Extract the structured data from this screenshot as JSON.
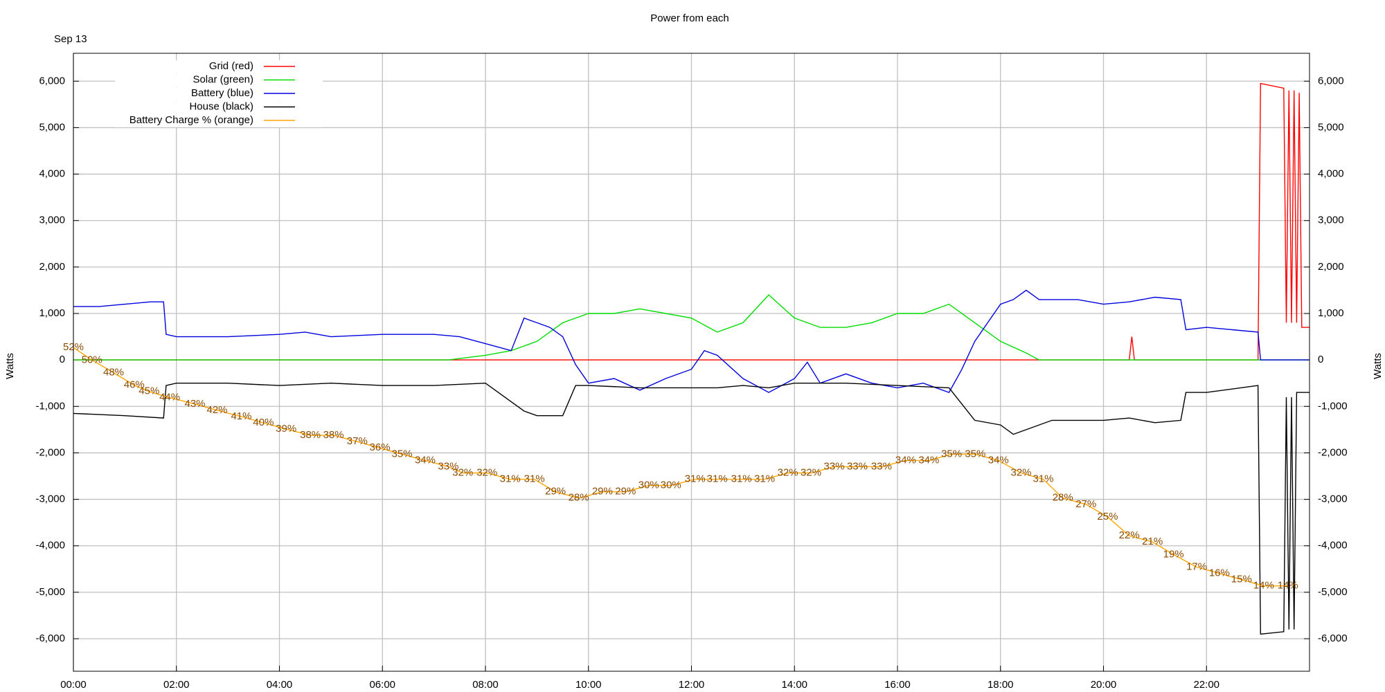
{
  "chart_data": {
    "type": "line",
    "title": "Power from each",
    "annotation": "Sep 13",
    "ylabel": "Watts",
    "y2label": "Watts",
    "xlim": [
      0,
      24
    ],
    "xticks": [
      {
        "value": 0,
        "label": "00:00"
      },
      {
        "value": 2,
        "label": "02:00"
      },
      {
        "value": 4,
        "label": "04:00"
      },
      {
        "value": 6,
        "label": "06:00"
      },
      {
        "value": 8,
        "label": "08:00"
      },
      {
        "value": 10,
        "label": "10:00"
      },
      {
        "value": 12,
        "label": "12:00"
      },
      {
        "value": 14,
        "label": "14:00"
      },
      {
        "value": 16,
        "label": "16:00"
      },
      {
        "value": 18,
        "label": "18:00"
      },
      {
        "value": 20,
        "label": "20:00"
      },
      {
        "value": 22,
        "label": "22:00"
      }
    ],
    "ylim": [
      -6700,
      6600
    ],
    "yticks": [
      {
        "value": 6000,
        "label": "6,000"
      },
      {
        "value": 5000,
        "label": "5,000"
      },
      {
        "value": 4000,
        "label": "4,000"
      },
      {
        "value": 3000,
        "label": "3,000"
      },
      {
        "value": 2000,
        "label": "2,000"
      },
      {
        "value": 1000,
        "label": "1,000"
      },
      0,
      {
        "value": -1000,
        "label": "-1,000"
      },
      {
        "value": -2000,
        "label": "-2,000"
      },
      {
        "value": -3000,
        "label": "-3,000"
      },
      {
        "value": -4000,
        "label": "-4,000"
      },
      {
        "value": -5000,
        "label": "-5,000"
      },
      {
        "value": -6000,
        "label": "-6,000"
      }
    ],
    "y2lim": [
      -6700,
      6600
    ],
    "y2ticks": [
      {
        "value": 6000,
        "label": "6,000"
      },
      {
        "value": 5000,
        "label": "5,000"
      },
      {
        "value": 4000,
        "label": "4,000"
      },
      {
        "value": 3000,
        "label": "3,000"
      },
      {
        "value": 2000,
        "label": "2,000"
      },
      {
        "value": 1000,
        "label": "1,000"
      },
      0,
      {
        "value": -1000,
        "label": "-1,000"
      },
      {
        "value": -2000,
        "label": "-2,000"
      },
      {
        "value": -3000,
        "label": "-3,000"
      },
      {
        "value": -4000,
        "label": "-4,000"
      },
      {
        "value": -5000,
        "label": "-5,000"
      },
      {
        "value": -6000,
        "label": "-6,000"
      }
    ],
    "y3lim": [
      0.4,
      98.9
    ],
    "grid": true,
    "legend": "top-left",
    "series": [
      {
        "name": "Grid (red)",
        "color": "#ff0000",
        "x": [
          0,
          20.5,
          20.55,
          20.6,
          23,
          23.05,
          23.5,
          23.55,
          23.6,
          23.65,
          23.7,
          23.75,
          23.8,
          23.85,
          24
        ],
        "values": [
          0,
          0,
          500,
          0,
          0,
          5950,
          5850,
          800,
          5800,
          800,
          5800,
          800,
          5750,
          700,
          700
        ]
      },
      {
        "name": "Solar (green)",
        "color": "#00dd00",
        "x": [
          0,
          7.3,
          7.5,
          8,
          8.5,
          9,
          9.5,
          10,
          10.5,
          11,
          11.5,
          12,
          12.5,
          13,
          13.5,
          14,
          14.5,
          15,
          15.5,
          16,
          16.5,
          17,
          17.5,
          18,
          18.5,
          18.75,
          24
        ],
        "values": [
          0,
          0,
          30,
          100,
          200,
          400,
          800,
          1000,
          1000,
          1100,
          1000,
          900,
          600,
          800,
          1400,
          900,
          700,
          700,
          800,
          1000,
          1000,
          1200,
          800,
          400,
          150,
          0,
          0
        ]
      },
      {
        "name": "Battery (blue)",
        "color": "#0000dd",
        "x": [
          0,
          0.5,
          1,
          1.5,
          1.75,
          1.8,
          2,
          3,
          4,
          4.5,
          5,
          6,
          7,
          7.5,
          8,
          8.5,
          8.75,
          9,
          9.25,
          9.5,
          9.75,
          10,
          10.5,
          11,
          11.5,
          12,
          12.25,
          12.5,
          13,
          13.5,
          14,
          14.25,
          14.5,
          15,
          15.5,
          16,
          16.5,
          17,
          17.25,
          17.5,
          17.75,
          18,
          18.25,
          18.5,
          18.75,
          19,
          19.5,
          20,
          20.5,
          21,
          21.5,
          21.6,
          22,
          22.5,
          23,
          23.05,
          24
        ],
        "values": [
          1150,
          1150,
          1200,
          1250,
          1250,
          550,
          500,
          500,
          550,
          600,
          500,
          550,
          550,
          500,
          350,
          200,
          900,
          800,
          700,
          500,
          -100,
          -500,
          -400,
          -650,
          -400,
          -200,
          200,
          100,
          -400,
          -700,
          -400,
          -50,
          -500,
          -300,
          -500,
          -600,
          -500,
          -700,
          -200,
          400,
          800,
          1200,
          1300,
          1500,
          1300,
          1300,
          1300,
          1200,
          1250,
          1350,
          1300,
          650,
          700,
          650,
          600,
          0,
          0
        ]
      },
      {
        "name": "House (black)",
        "color": "#000000",
        "x": [
          0,
          1,
          1.75,
          1.8,
          2,
          3,
          4,
          5,
          6,
          7,
          8,
          8.75,
          9,
          9.5,
          9.75,
          10,
          11,
          11.5,
          12,
          12.5,
          13,
          13.5,
          14,
          15,
          16,
          17,
          17.5,
          18,
          18.25,
          18.5,
          19,
          20,
          20.5,
          21,
          21.5,
          21.6,
          22,
          23,
          23.05,
          23.5,
          23.55,
          23.6,
          23.65,
          23.7,
          23.75,
          24
        ],
        "values": [
          -1150,
          -1200,
          -1250,
          -550,
          -500,
          -500,
          -550,
          -500,
          -550,
          -550,
          -500,
          -1100,
          -1200,
          -1200,
          -550,
          -550,
          -600,
          -600,
          -600,
          -600,
          -550,
          -600,
          -500,
          -500,
          -550,
          -600,
          -1300,
          -1400,
          -1600,
          -1500,
          -1300,
          -1300,
          -1250,
          -1350,
          -1300,
          -700,
          -700,
          -550,
          -5900,
          -5850,
          -800,
          -5800,
          -800,
          -5800,
          -700,
          -700
        ]
      },
      {
        "name": "Battery Charge % (orange)",
        "color": "#ffa500",
        "label_color": "#8b4a00",
        "axis": "y3",
        "x": [
          0,
          0.36,
          0.78,
          1.18,
          1.47,
          1.87,
          2.36,
          2.79,
          3.26,
          3.69,
          4.13,
          4.6,
          5.05,
          5.51,
          5.95,
          6.38,
          6.83,
          7.28,
          7.56,
          8.03,
          8.48,
          8.95,
          9.36,
          9.81,
          10.27,
          10.72,
          11.17,
          11.6,
          12.07,
          12.5,
          12.97,
          13.42,
          13.87,
          14.32,
          14.77,
          15.22,
          15.69,
          16.16,
          16.61,
          17.05,
          17.51,
          17.96,
          18.4,
          18.83,
          19.21,
          19.66,
          20.08,
          20.5,
          20.95,
          21.36,
          21.81,
          22.25,
          22.68,
          23.11,
          23.58
        ],
        "values": [
          52,
          50,
          48,
          46,
          45,
          44,
          43,
          42,
          41,
          40,
          39,
          38,
          38,
          37,
          36,
          35,
          34,
          33,
          32,
          32,
          31,
          31,
          29,
          28,
          29,
          29,
          30,
          30,
          31,
          31,
          31,
          31,
          32,
          32,
          33,
          33,
          33,
          34,
          34,
          35,
          35,
          34,
          32,
          31,
          28,
          27,
          25,
          22,
          21,
          19,
          17,
          16,
          15,
          14,
          14
        ],
        "value_labels": [
          "52%",
          "50%",
          "48%",
          "46%",
          "45%",
          "44%",
          "43%",
          "42%",
          "41%",
          "40%",
          "39%",
          "38%",
          "38%",
          "37%",
          "36%",
          "35%",
          "34%",
          "33%",
          "32%",
          "32%",
          "31%",
          "31%",
          "29%",
          "28%",
          "29%",
          "29%",
          "30%",
          "30%",
          "31%",
          "31%",
          "31%",
          "31%",
          "32%",
          "32%",
          "33%",
          "33%",
          "33%",
          "34%",
          "34%",
          "35%",
          "35%",
          "34%",
          "32%",
          "31%",
          "28%",
          "27%",
          "25%",
          "22%",
          "21%",
          "19%",
          "17%",
          "16%",
          "15%",
          "14%",
          "14%"
        ]
      }
    ]
  }
}
